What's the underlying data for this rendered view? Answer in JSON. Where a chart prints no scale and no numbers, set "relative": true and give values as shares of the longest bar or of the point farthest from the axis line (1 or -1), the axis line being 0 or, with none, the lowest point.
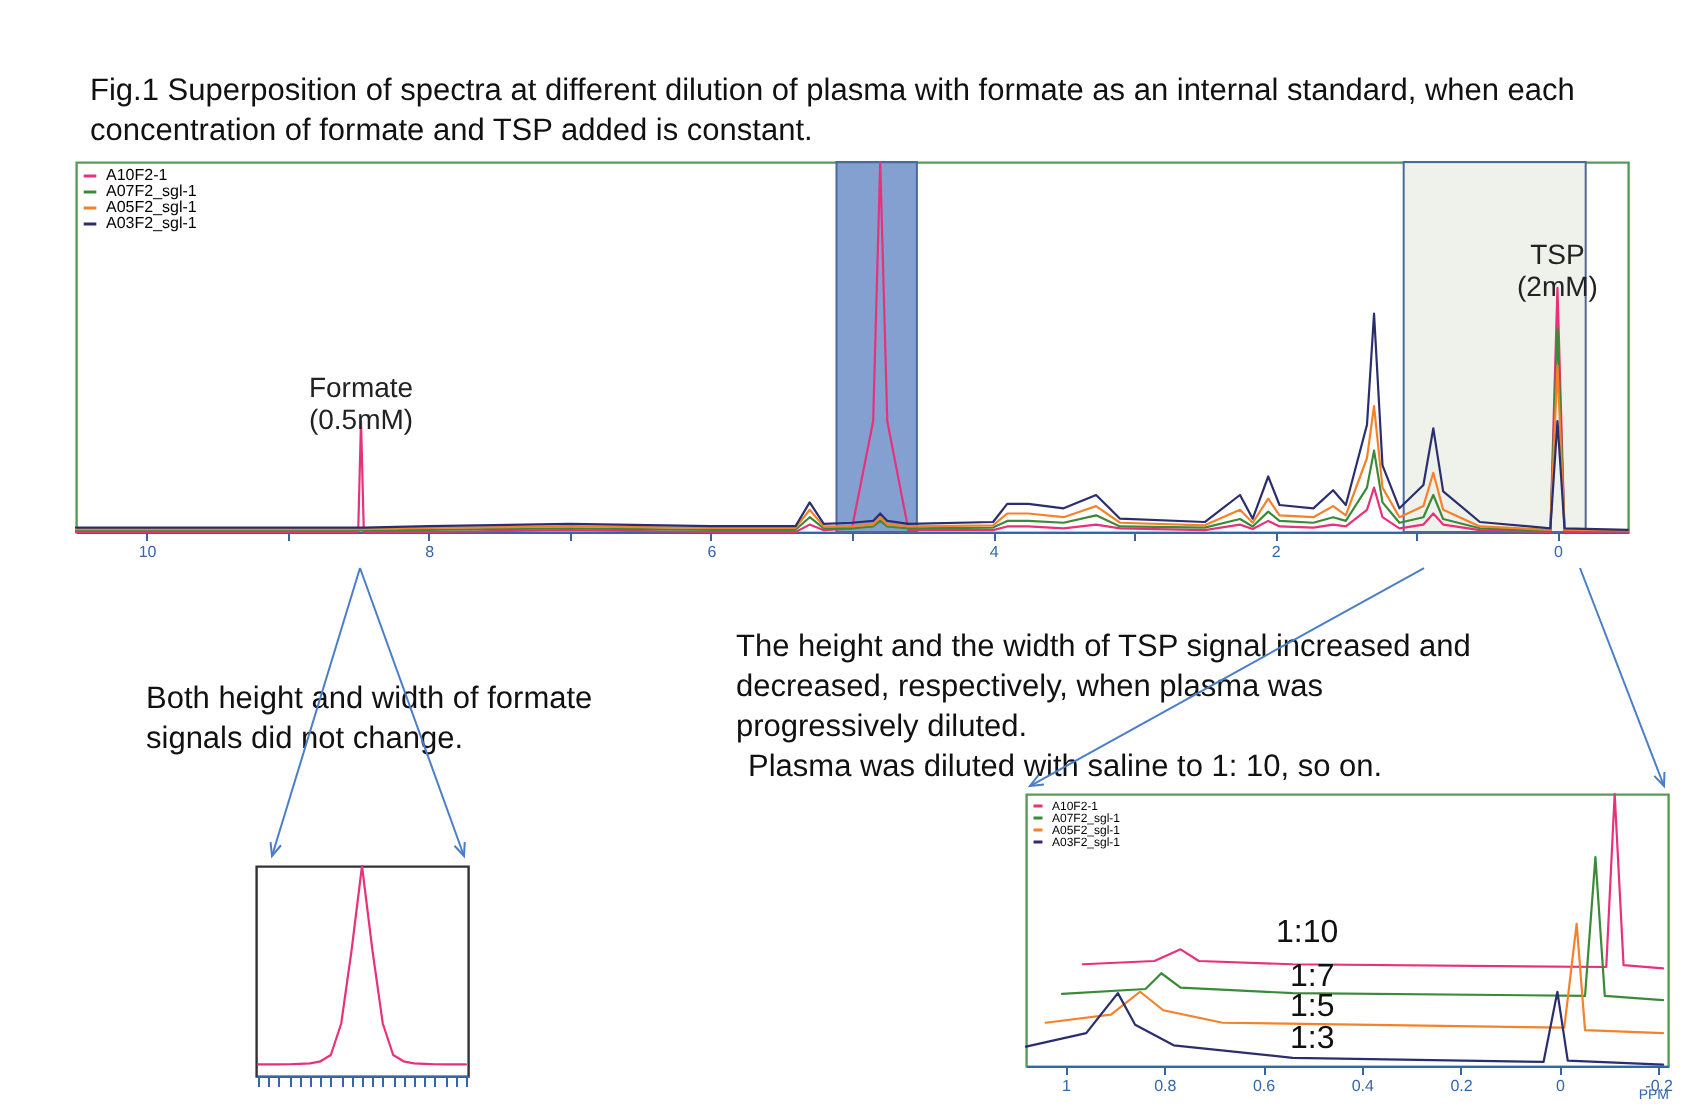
{
  "chart_data": [
    {
      "type": "line",
      "title": "Fig.1 Superposition of spectra at different dilution of plasma with formate as an internal standard, when each concentration of formate and TSP added is constant.",
      "relative": true,
      "legend": "top left",
      "xlim": [
        10.5,
        -0.5
      ],
      "xticks": [
        10,
        {
          "value": 9,
          "label": null
        },
        8,
        {
          "value": 7,
          "label": null
        },
        6,
        {
          "value": 5,
          "label": null
        },
        4,
        {
          "value": 3,
          "label": null
        },
        2,
        {
          "value": 1,
          "label": null
        },
        0
      ],
      "x": [
        10.5,
        9,
        8.5,
        8.48,
        8.46,
        8,
        7,
        6,
        5.4,
        5.3,
        5.2,
        5.0,
        4.85,
        4.8,
        4.75,
        4.6,
        4.0,
        3.9,
        3.75,
        3.5,
        3.27,
        3.1,
        2.5,
        2.25,
        2.16,
        2.05,
        1.97,
        1.73,
        1.59,
        1.5,
        1.35,
        1.3,
        1.24,
        1.12,
        0.95,
        0.88,
        0.81,
        0.55,
        0.05,
        0,
        -0.05,
        -0.5
      ],
      "series": [
        {
          "name": "A10F2-1",
          "color": "#e8317a",
          "values": [
            0,
            0,
            0,
            0.3,
            0,
            0,
            0.005,
            0,
            0,
            0.02,
            0.005,
            0.01,
            0.3,
            1.0,
            0.3,
            0.005,
            0.005,
            0.015,
            0.015,
            0.01,
            0.02,
            0.01,
            0.005,
            0.02,
            0.008,
            0.03,
            0.015,
            0.012,
            0.02,
            0.015,
            0.06,
            0.12,
            0.04,
            0.01,
            0.02,
            0.05,
            0.02,
            0.005,
            0,
            0.66,
            0,
            0
          ]
        },
        {
          "name": "A07F2_sgl-1",
          "color": "#3a8a3a",
          "x": [
            10.5,
            9,
            8.5,
            8.46,
            8,
            7,
            6,
            5.4,
            5.3,
            5.2,
            5.0,
            4.85,
            4.8,
            4.75,
            4.6,
            4.0,
            3.9,
            3.75,
            3.5,
            3.27,
            3.1,
            2.5,
            2.25,
            2.16,
            2.05,
            1.97,
            1.73,
            1.59,
            1.5,
            1.35,
            1.3,
            1.24,
            1.12,
            0.95,
            0.88,
            0.81,
            0.55,
            0.05,
            0,
            -0.05,
            -0.5
          ],
          "values": [
            0.004,
            0.004,
            0.004,
            0.004,
            0.006,
            0.01,
            0.006,
            0.006,
            0.04,
            0.01,
            0.01,
            0.015,
            0.03,
            0.015,
            0.01,
            0.012,
            0.03,
            0.03,
            0.025,
            0.045,
            0.015,
            0.012,
            0.035,
            0.015,
            0.055,
            0.03,
            0.025,
            0.04,
            0.03,
            0.12,
            0.22,
            0.08,
            0.025,
            0.04,
            0.1,
            0.035,
            0.01,
            0.003,
            0.55,
            0.003,
            0.002
          ]
        },
        {
          "name": "A05F2_sgl-1",
          "color": "#f5822a",
          "x": [
            10.5,
            9,
            8.5,
            8.46,
            8,
            7,
            6,
            5.4,
            5.3,
            5.2,
            5.0,
            4.85,
            4.8,
            4.75,
            4.6,
            4.0,
            3.9,
            3.75,
            3.5,
            3.27,
            3.1,
            2.5,
            2.25,
            2.16,
            2.05,
            1.97,
            1.73,
            1.59,
            1.5,
            1.35,
            1.3,
            1.24,
            1.12,
            0.95,
            0.88,
            0.81,
            0.55,
            0.05,
            0,
            -0.05,
            -0.5
          ],
          "values": [
            0.008,
            0.008,
            0.008,
            0.008,
            0.011,
            0.015,
            0.011,
            0.011,
            0.06,
            0.015,
            0.015,
            0.02,
            0.04,
            0.02,
            0.015,
            0.018,
            0.05,
            0.05,
            0.04,
            0.07,
            0.025,
            0.018,
            0.06,
            0.025,
            0.09,
            0.045,
            0.04,
            0.07,
            0.045,
            0.2,
            0.34,
            0.12,
            0.04,
            0.07,
            0.16,
            0.06,
            0.015,
            0.006,
            0.45,
            0.006,
            0.004
          ]
        },
        {
          "name": "A03F2_sgl-1",
          "color": "#2b2e6e",
          "x": [
            10.5,
            9,
            8.5,
            8.46,
            8,
            7,
            6,
            5.4,
            5.3,
            5.2,
            5.0,
            4.85,
            4.8,
            4.75,
            4.6,
            4.0,
            3.9,
            3.75,
            3.5,
            3.27,
            3.1,
            2.5,
            2.25,
            2.16,
            2.05,
            1.97,
            1.73,
            1.59,
            1.5,
            1.35,
            1.3,
            1.24,
            1.12,
            0.95,
            0.88,
            0.81,
            0.55,
            0.05,
            0,
            -0.05,
            -0.5
          ],
          "values": [
            0.012,
            0.012,
            0.012,
            0.012,
            0.016,
            0.022,
            0.016,
            0.016,
            0.08,
            0.022,
            0.025,
            0.03,
            0.05,
            0.03,
            0.022,
            0.027,
            0.076,
            0.076,
            0.064,
            0.1,
            0.036,
            0.027,
            0.1,
            0.036,
            0.15,
            0.073,
            0.064,
            0.113,
            0.073,
            0.29,
            0.59,
            0.18,
            0.064,
            0.127,
            0.28,
            0.11,
            0.027,
            0.01,
            0.3,
            0.01,
            0.006
          ]
        }
      ],
      "bands": [
        {
          "axis": "x",
          "from": 5.11,
          "to": 4.54,
          "color": "#6f8fc8"
        },
        {
          "axis": "x",
          "from": 1.09,
          "to": -0.2,
          "color": "#eceee8"
        }
      ],
      "annotations": [
        {
          "text": "Formate\n(0.5mM)",
          "x": 8.48,
          "y": 0.3
        },
        {
          "text": "TSP\n(2mM)",
          "x": 0,
          "y": 0.66
        }
      ]
    },
    {
      "type": "line",
      "relative": true,
      "tick_labels": false,
      "categories": [
        null,
        null,
        null,
        null,
        null,
        null,
        null,
        null,
        null,
        null,
        null,
        null,
        null,
        null,
        null,
        null,
        null,
        null,
        null,
        null,
        null
      ],
      "series": [
        {
          "color": "#e8317a",
          "values": [
            0.055,
            0.055,
            0.055,
            0.056,
            0.058,
            0.06,
            0.07,
            0.1,
            0.25,
            0.6,
            1.0,
            0.6,
            0.25,
            0.1,
            0.07,
            0.06,
            0.058,
            0.056,
            0.055,
            0.055,
            0.055
          ]
        }
      ],
      "annotations": [
        "Both height and width of formate signals did not change."
      ]
    },
    {
      "type": "line",
      "relative": true,
      "legend": "top left",
      "xlabel": "PPM",
      "xlim": [
        1.08,
        -0.22
      ],
      "xticks": [
        1.0,
        0.8,
        0.6,
        0.4,
        0.2,
        0.0,
        -0.2
      ],
      "series": [
        {
          "name": "A10F2-1",
          "color": "#e8317a",
          "x": [
            0.965,
            0.82,
            0.767,
            0.73,
            0.54,
            -0.095,
            -0.112,
            -0.13,
            -0.21
          ],
          "values": [
            0.374,
            0.386,
            0.429,
            0.386,
            0.374,
            0.364,
            1.0,
            0.371,
            0.359
          ]
        },
        {
          "name": "A07F2_sgl-1",
          "color": "#3a8a3a",
          "x": [
            1.007,
            0.838,
            0.806,
            0.767,
            0.54,
            -0.052,
            -0.073,
            -0.092,
            -0.21
          ],
          "values": [
            0.265,
            0.283,
            0.341,
            0.288,
            0.268,
            0.258,
            0.768,
            0.258,
            0.242
          ]
        },
        {
          "name": "A05F2_sgl-1",
          "color": "#f5822a",
          "x": [
            1.04,
            0.908,
            0.849,
            0.802,
            0.682,
            -0.01,
            -0.035,
            -0.052,
            -0.21
          ],
          "values": [
            0.159,
            0.189,
            0.273,
            0.205,
            0.159,
            0.141,
            0.523,
            0.132,
            0.121
          ]
        },
        {
          "name": "A03F2_sgl-1",
          "color": "#2b2e6e",
          "x": [
            1.08,
            0.958,
            0.894,
            0.859,
            0.781,
            0.54,
            0.032,
            0.004,
            -0.017,
            -0.21
          ],
          "values": [
            0.071,
            0.121,
            0.268,
            0.152,
            0.076,
            0.03,
            0.015,
            0.273,
            0.02,
            0.005
          ]
        }
      ],
      "annotations": [
        "The height and the width of TSP signal increased and decreased, respectively, when plasma was progressively diluted.",
        "Plasma was diluted with saline to 1: 10, so on.",
        "1:10",
        "1:7",
        "1:5",
        "1:3"
      ]
    }
  ]
}
